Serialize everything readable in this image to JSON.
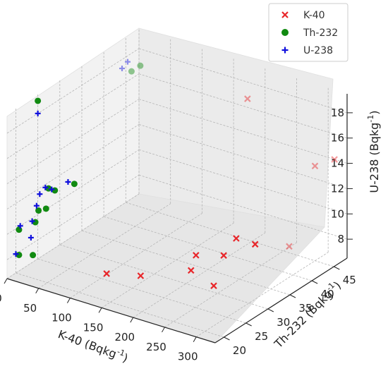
{
  "chart_data": {
    "type": "scatter3d",
    "axes": {
      "x": {
        "label": "K-40 (Bqkg",
        "label_sup": "-1",
        "label_end": ")",
        "ticks": [
          0,
          50,
          100,
          150,
          200,
          250,
          300
        ],
        "range": [
          0,
          330
        ]
      },
      "y": {
        "label": "Th-232 (Bqkg",
        "label_sup": "-1",
        "label_end": ")",
        "ticks": [
          20,
          25,
          30,
          35,
          40,
          45
        ],
        "range": [
          18,
          48
        ]
      },
      "z": {
        "label": "U-238 (Bqkg",
        "label_sup": "-1",
        "label_end": ")",
        "ticks": [
          8,
          10,
          12,
          14,
          16,
          18
        ],
        "range": [
          6.5,
          19.5
        ]
      }
    },
    "legend": {
      "position": "top-right"
    },
    "grid": true,
    "series": [
      {
        "name": "K-40",
        "marker": "x",
        "color": "#e8262a",
        "points": [
          [
            130,
            22,
            8
          ],
          [
            170,
            24,
            8
          ],
          [
            215,
            29,
            8
          ],
          [
            195,
            33,
            8
          ],
          [
            225,
            35,
            8
          ],
          [
            265,
            27,
            8
          ],
          [
            210,
            40,
            8
          ],
          [
            240,
            40,
            8
          ],
          [
            280,
            42,
            8
          ],
          [
            200,
            44,
            18
          ],
          [
            300,
            45,
            14
          ],
          [
            310,
            48,
            14
          ]
        ]
      },
      {
        "name": "Th-232",
        "marker": "o",
        "color": "#118a11",
        "points": [
          [
            5,
            20,
            8
          ],
          [
            5,
            20,
            10
          ],
          [
            20,
            21,
            8
          ],
          [
            10,
            23,
            10
          ],
          [
            15,
            23,
            11
          ],
          [
            20,
            24,
            11
          ],
          [
            10,
            26,
            12
          ],
          [
            20,
            26,
            12
          ],
          [
            30,
            29,
            12
          ],
          [
            0,
            25,
            19
          ],
          [
            30,
            42,
            18
          ],
          [
            30,
            44,
            18
          ]
        ]
      },
      {
        "name": "U-238",
        "marker": "+",
        "color": "#1010dd",
        "points": [
          [
            0,
            20,
            8
          ],
          [
            0,
            21,
            10
          ],
          [
            10,
            22,
            9
          ],
          [
            5,
            23,
            10
          ],
          [
            5,
            24,
            11
          ],
          [
            10,
            24,
            12
          ],
          [
            5,
            26,
            12
          ],
          [
            15,
            26,
            12
          ],
          [
            20,
            29,
            12
          ],
          [
            0,
            25,
            18
          ],
          [
            15,
            42,
            18
          ],
          [
            10,
            44,
            18
          ]
        ]
      }
    ]
  }
}
